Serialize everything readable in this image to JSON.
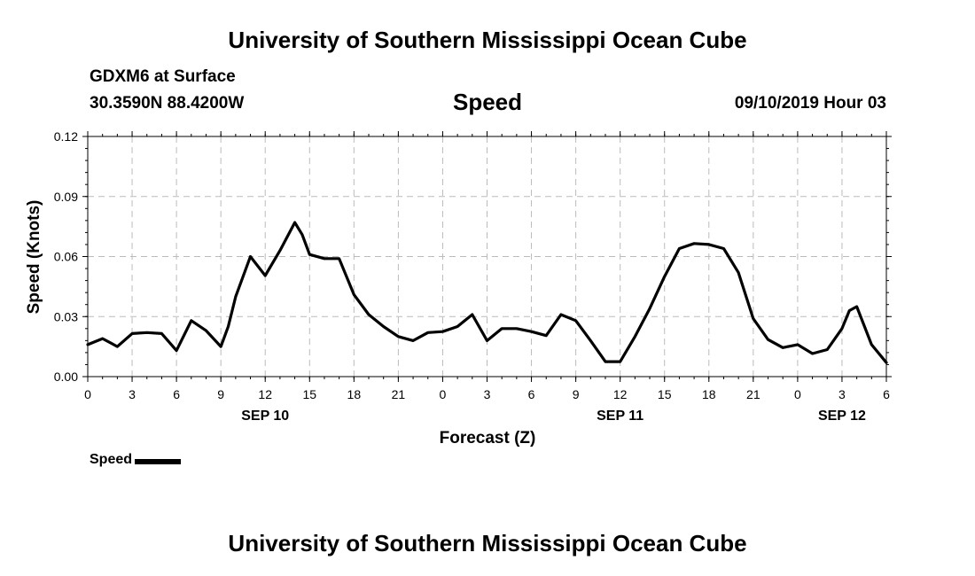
{
  "header": {
    "title": "University of Southern Mississippi Ocean Cube",
    "location_name": "GDXM6 at Surface",
    "coordinates": "30.3590N 88.4200W",
    "datetime": "09/10/2019 Hour 03"
  },
  "footer": {
    "title": "University of Southern Mississippi Ocean Cube"
  },
  "legend": {
    "label": "Speed"
  },
  "chart_data": {
    "type": "line",
    "title": "Speed",
    "xlabel": "Forecast (Z)",
    "ylabel": "Speed (Knots)",
    "ylim": [
      0,
      0.12
    ],
    "yticks": [
      "0.00",
      "0.03",
      "0.06",
      "0.09",
      "0.12"
    ],
    "xlim": [
      0,
      54
    ],
    "xtick_labels": [
      "0",
      "3",
      "6",
      "9",
      "12",
      "15",
      "18",
      "21",
      "0",
      "3",
      "6",
      "9",
      "12",
      "15",
      "18",
      "21",
      "0",
      "3",
      "6"
    ],
    "date_labels": [
      {
        "label": "SEP 10",
        "x": 12
      },
      {
        "label": "SEP 11",
        "x": 36
      },
      {
        "label": "SEP 12",
        "x": 51
      }
    ],
    "grid": true,
    "line_color": "#000000",
    "series": [
      {
        "name": "Speed",
        "x": [
          0,
          1,
          2,
          3,
          4,
          5,
          6,
          7,
          8,
          9,
          9.5,
          10,
          11,
          12,
          13,
          14,
          14.5,
          15,
          16,
          17,
          18,
          19,
          20,
          21,
          22,
          23,
          24,
          25,
          26,
          27,
          28,
          29,
          30,
          31,
          32,
          33,
          34,
          35,
          36,
          37,
          38,
          39,
          40,
          41,
          42,
          43,
          44,
          45,
          46,
          47,
          48,
          49,
          50,
          51,
          51.5,
          52,
          53,
          54
        ],
        "values": [
          0.016,
          0.019,
          0.015,
          0.0215,
          0.022,
          0.0215,
          0.013,
          0.028,
          0.023,
          0.015,
          0.025,
          0.04,
          0.06,
          0.0505,
          0.063,
          0.077,
          0.071,
          0.061,
          0.059,
          0.059,
          0.041,
          0.031,
          0.025,
          0.02,
          0.018,
          0.022,
          0.0225,
          0.025,
          0.031,
          0.018,
          0.024,
          0.024,
          0.0225,
          0.0205,
          0.031,
          0.028,
          0.018,
          0.0075,
          0.0075,
          0.02,
          0.034,
          0.05,
          0.064,
          0.0665,
          0.066,
          0.064,
          0.052,
          0.029,
          0.0185,
          0.0145,
          0.016,
          0.0115,
          0.0135,
          0.024,
          0.033,
          0.035,
          0.016,
          0.007
        ]
      }
    ]
  }
}
